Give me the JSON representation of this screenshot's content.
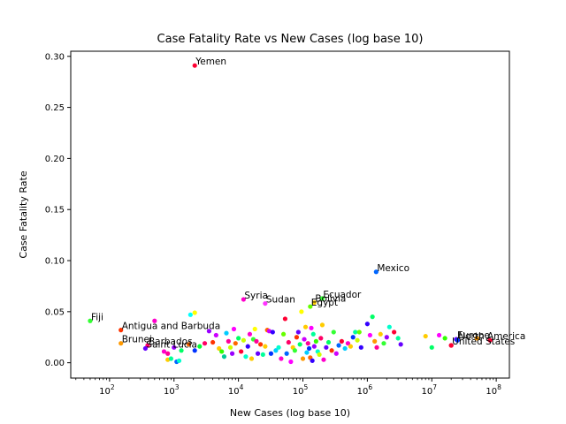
{
  "chart_data": {
    "type": "scatter",
    "title": "Case Fatality Rate vs New Cases (log base 10)",
    "xlabel": "New Cases (log base 10)",
    "ylabel": "Case Fatality Rate",
    "x_scale": "log",
    "xlim": [
      25,
      160000000
    ],
    "ylim": [
      -0.015,
      0.305
    ],
    "x_ticks": [
      100,
      1000,
      10000,
      100000,
      1000000,
      10000000,
      100000000
    ],
    "x_tick_labels": [
      {
        "base": "10",
        "exp": "2"
      },
      {
        "base": "10",
        "exp": "3"
      },
      {
        "base": "10",
        "exp": "4"
      },
      {
        "base": "10",
        "exp": "5"
      },
      {
        "base": "10",
        "exp": "6"
      },
      {
        "base": "10",
        "exp": "7"
      },
      {
        "base": "10",
        "exp": "8"
      }
    ],
    "y_ticks": [
      0.0,
      0.05,
      0.1,
      0.15,
      0.2,
      0.25,
      0.3
    ],
    "y_tick_labels": [
      "0.00",
      "0.05",
      "0.10",
      "0.15",
      "0.20",
      "0.25",
      "0.30"
    ],
    "grid": false,
    "legend": false,
    "annotations": [
      {
        "label": "Yemen",
        "x": 2100,
        "y": 0.291,
        "color": "#ff0033"
      },
      {
        "label": "Mexico",
        "x": 1370000,
        "y": 0.089,
        "color": "#0066ff"
      },
      {
        "label": "Ecuador",
        "x": 200000,
        "y": 0.063,
        "color": "#33ff33"
      },
      {
        "label": "Syria",
        "x": 12000,
        "y": 0.062,
        "color": "#ff00cc"
      },
      {
        "label": "Bolivia",
        "x": 150000,
        "y": 0.059,
        "color": "#ffcc00"
      },
      {
        "label": "Sudan",
        "x": 26000,
        "y": 0.058,
        "color": "#ff33ff"
      },
      {
        "label": "Egypt",
        "x": 130000,
        "y": 0.055,
        "color": "#66ff00"
      },
      {
        "label": "Fiji",
        "x": 50,
        "y": 0.041,
        "color": "#33ff33"
      },
      {
        "label": "Antigua and Barbuda",
        "x": 150,
        "y": 0.032,
        "color": "#ff3300"
      },
      {
        "label": "Brunei",
        "x": 150,
        "y": 0.019,
        "color": "#ff9900"
      },
      {
        "label": "Barbados",
        "x": 390,
        "y": 0.017,
        "color": "#ff0066"
      },
      {
        "label": "Saint Lucia",
        "x": 360,
        "y": 0.014,
        "color": "#6600ff"
      },
      {
        "label": "Europe",
        "x": 24000000,
        "y": 0.023,
        "color": "#6600ff"
      },
      {
        "label": "North America",
        "x": 25000000,
        "y": 0.022,
        "color": "#0033ff"
      },
      {
        "label": "United States",
        "x": 20000000,
        "y": 0.017,
        "color": "#ff0033"
      }
    ],
    "points": [
      [
        800,
        0.003,
        "#ffcc00"
      ],
      [
        900,
        0.004,
        "#00ff99"
      ],
      [
        1100,
        0.001,
        "#0066ff"
      ],
      [
        1200,
        0.002,
        "#00ffcc"
      ],
      [
        700,
        0.011,
        "#ff00cc"
      ],
      [
        800,
        0.009,
        "#ff0099"
      ],
      [
        1000,
        0.015,
        "#9900ff"
      ],
      [
        1300,
        0.012,
        "#00ff66"
      ],
      [
        1700,
        0.018,
        "#ff6600"
      ],
      [
        2100,
        0.012,
        "#0033ff"
      ],
      [
        2500,
        0.016,
        "#00ff33"
      ],
      [
        3000,
        0.019,
        "#ff0066"
      ],
      [
        1800,
        0.047,
        "#00ffff"
      ],
      [
        2100,
        0.049,
        "#ffff00"
      ],
      [
        500,
        0.041,
        "#ff00cc"
      ],
      [
        3500,
        0.031,
        "#9900ff"
      ],
      [
        4000,
        0.02,
        "#ff3300"
      ],
      [
        4500,
        0.027,
        "#cc00ff"
      ],
      [
        5000,
        0.014,
        "#ffcc00"
      ],
      [
        5500,
        0.011,
        "#33ff00"
      ],
      [
        6000,
        0.006,
        "#00cc99"
      ],
      [
        6500,
        0.029,
        "#00ccff"
      ],
      [
        7000,
        0.021,
        "#ff0099"
      ],
      [
        7500,
        0.015,
        "#ccff00"
      ],
      [
        8000,
        0.009,
        "#9900ff"
      ],
      [
        8500,
        0.033,
        "#ff00ff"
      ],
      [
        9000,
        0.019,
        "#ff6600"
      ],
      [
        10000,
        0.024,
        "#00ff66"
      ],
      [
        11000,
        0.011,
        "#ff0033"
      ],
      [
        12000,
        0.022,
        "#ccff00"
      ],
      [
        13000,
        0.006,
        "#00ffcc"
      ],
      [
        14000,
        0.016,
        "#3300ff"
      ],
      [
        15000,
        0.028,
        "#ff00cc"
      ],
      [
        16000,
        0.004,
        "#ffcc00"
      ],
      [
        17000,
        0.023,
        "#33ff33"
      ],
      [
        18000,
        0.033,
        "#ffff00"
      ],
      [
        19000,
        0.021,
        "#ff0099"
      ],
      [
        20000,
        0.009,
        "#6600ff"
      ],
      [
        22000,
        0.018,
        "#ff3300"
      ],
      [
        24000,
        0.008,
        "#00ff99"
      ],
      [
        26000,
        0.016,
        "#ffcc00"
      ],
      [
        28000,
        0.032,
        "#ff6600"
      ],
      [
        30000,
        0.031,
        "#cc00ff"
      ],
      [
        32000,
        0.009,
        "#0033ff"
      ],
      [
        34000,
        0.03,
        "#3300ff"
      ],
      [
        38000,
        0.012,
        "#00ccff"
      ],
      [
        42000,
        0.015,
        "#00ffcc"
      ],
      [
        46000,
        0.004,
        "#ff00cc"
      ],
      [
        50000,
        0.028,
        "#66ff00"
      ],
      [
        53000,
        0.043,
        "#ff0033"
      ],
      [
        56000,
        0.009,
        "#0066ff"
      ],
      [
        60000,
        0.02,
        "#ff0066"
      ],
      [
        65000,
        0.001,
        "#ff00ff"
      ],
      [
        70000,
        0.015,
        "#ffcc00"
      ],
      [
        75000,
        0.012,
        "#33ff33"
      ],
      [
        80000,
        0.025,
        "#ff3300"
      ],
      [
        85000,
        0.03,
        "#6600ff"
      ],
      [
        90000,
        0.018,
        "#00ff66"
      ],
      [
        95000,
        0.05,
        "#ffff00"
      ],
      [
        100000,
        0.004,
        "#ff9900"
      ],
      [
        105000,
        0.023,
        "#cc00ff"
      ],
      [
        110000,
        0.035,
        "#ffcc00"
      ],
      [
        115000,
        0.01,
        "#00ccff"
      ],
      [
        120000,
        0.019,
        "#ff0099"
      ],
      [
        125000,
        0.014,
        "#0033ff"
      ],
      [
        130000,
        0.005,
        "#ff6600"
      ],
      [
        135000,
        0.034,
        "#ff00ff"
      ],
      [
        140000,
        0.002,
        "#3300ff"
      ],
      [
        145000,
        0.028,
        "#00ff99"
      ],
      [
        150000,
        0.016,
        "#9900ff"
      ],
      [
        160000,
        0.021,
        "#33ff00"
      ],
      [
        170000,
        0.011,
        "#00ffcc"
      ],
      [
        180000,
        0.008,
        "#ccff00"
      ],
      [
        190000,
        0.024,
        "#ff0066"
      ],
      [
        200000,
        0.037,
        "#ffcc00"
      ],
      [
        210000,
        0.003,
        "#ff00cc"
      ],
      [
        230000,
        0.015,
        "#6600ff"
      ],
      [
        250000,
        0.02,
        "#00ff66"
      ],
      [
        280000,
        0.012,
        "#ff3300"
      ],
      [
        300000,
        0.03,
        "#33ff33"
      ],
      [
        330000,
        0.009,
        "#cc00ff"
      ],
      [
        360000,
        0.017,
        "#0066ff"
      ],
      [
        400000,
        0.021,
        "#ff0033"
      ],
      [
        450000,
        0.014,
        "#00ccff"
      ],
      [
        500000,
        0.019,
        "#ff00cc"
      ],
      [
        550000,
        0.016,
        "#ffcc00"
      ],
      [
        600000,
        0.025,
        "#0033ff"
      ],
      [
        650000,
        0.03,
        "#00ff99"
      ],
      [
        700000,
        0.022,
        "#ccff00"
      ],
      [
        750000,
        0.03,
        "#66ff00"
      ],
      [
        800000,
        0.015,
        "#3300ff"
      ],
      [
        1000000,
        0.038,
        "#3300ff"
      ],
      [
        1100000,
        0.027,
        "#ff00ff"
      ],
      [
        1200000,
        0.045,
        "#00ff66"
      ],
      [
        1300000,
        0.021,
        "#ff9900"
      ],
      [
        1400000,
        0.015,
        "#ff0099"
      ],
      [
        1600000,
        0.028,
        "#ffcc00"
      ],
      [
        1800000,
        0.019,
        "#33ff33"
      ],
      [
        2000000,
        0.025,
        "#9900ff"
      ],
      [
        2200000,
        0.035,
        "#00ffcc"
      ],
      [
        2600000,
        0.03,
        "#ff0033"
      ],
      [
        3000000,
        0.024,
        "#00ff99"
      ],
      [
        3300000,
        0.018,
        "#6600ff"
      ],
      [
        8000000,
        0.026,
        "#ffcc00"
      ],
      [
        10000000,
        0.015,
        "#00ff66"
      ],
      [
        13000000,
        0.027,
        "#ff00ff"
      ],
      [
        16000000,
        0.024,
        "#33ff00"
      ],
      [
        20000000,
        0.017,
        "#ff0033"
      ],
      [
        24000000,
        0.023,
        "#6600ff"
      ],
      [
        25000000,
        0.022,
        "#0033ff"
      ],
      [
        50000000,
        0.024,
        "#ff9900"
      ],
      [
        80000000,
        0.022,
        "#ff0033"
      ]
    ]
  }
}
